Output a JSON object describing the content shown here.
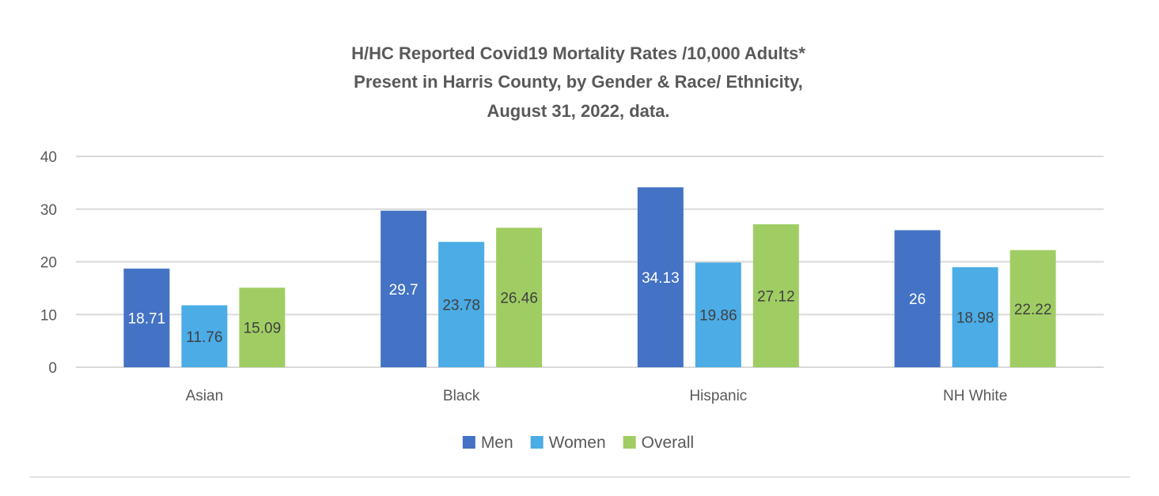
{
  "chart_data": {
    "type": "bar",
    "title_lines": [
      "H/HC Reported Covid19 Mortality Rates /10,000 Adults*",
      "Present in Harris County, by Gender & Race/ Ethnicity,",
      "August 31, 2022, data."
    ],
    "categories": [
      "Asian",
      "Black",
      "Hispanic",
      "NH White"
    ],
    "series": [
      {
        "name": "Men",
        "color": "#4472C4",
        "label_color": "#ffffff",
        "values": [
          18.71,
          29.7,
          34.13,
          26
        ],
        "labels": [
          "18.71",
          "29.7",
          "34.13",
          "26"
        ]
      },
      {
        "name": "Women",
        "color": "#4BACE6",
        "label_color": "#404040",
        "values": [
          11.76,
          23.78,
          19.86,
          18.98
        ],
        "labels": [
          "11.76",
          "23.78",
          "19.86",
          "18.98"
        ]
      },
      {
        "name": "Overall",
        "color": "#A0CD63",
        "label_color": "#404040",
        "values": [
          15.09,
          26.46,
          27.12,
          22.22
        ],
        "labels": [
          "15.09",
          "26.46",
          "27.12",
          "22.22"
        ]
      }
    ],
    "y_ticks": [
      "0",
      "10",
      "20",
      "30",
      "40"
    ],
    "ylim": [
      0,
      40
    ],
    "grid": true,
    "legend_position": "bottom",
    "xlabel": "",
    "ylabel": ""
  }
}
